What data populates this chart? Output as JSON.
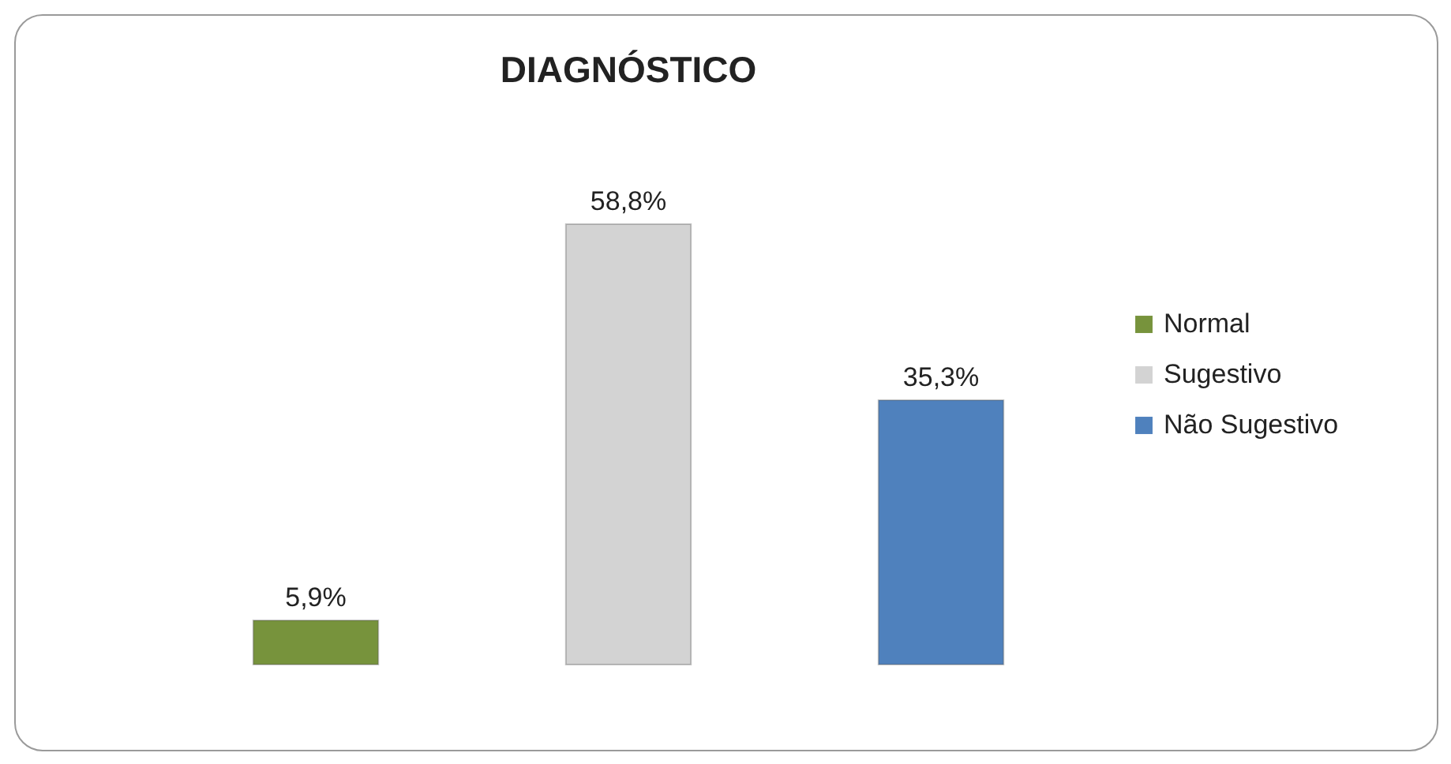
{
  "chart_data": {
    "type": "bar",
    "title": "DIAGNÓSTICO",
    "categories": [
      null,
      null,
      null
    ],
    "legend": "right",
    "stacked": true,
    "series": [
      {
        "name": "Normal",
        "color": "#77933c",
        "values": [
          5.9,
          null,
          null
        ],
        "value_labels": [
          "5,9%",
          null,
          null
        ]
      },
      {
        "name": "Sugestivo",
        "color": "#d3d3d3",
        "values": [
          null,
          58.8,
          null
        ],
        "value_labels": [
          null,
          "58,8%",
          null
        ]
      },
      {
        "name": "Não Sugestivo",
        "color": "#4f81bd",
        "values": [
          null,
          null,
          35.3
        ],
        "value_labels": [
          null,
          null,
          "35,3%"
        ]
      }
    ]
  }
}
